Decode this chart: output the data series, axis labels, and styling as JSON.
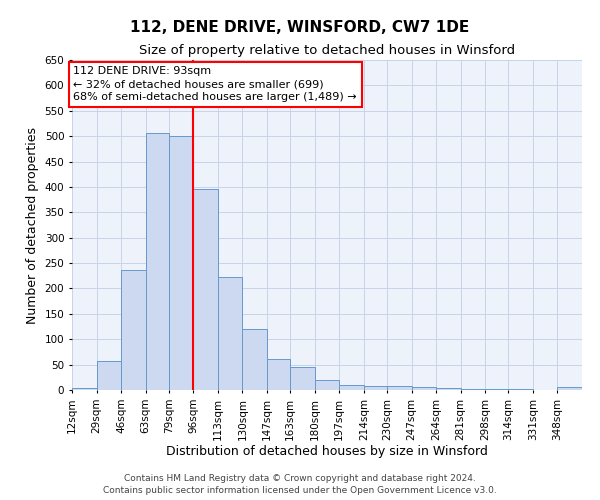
{
  "title": "112, DENE DRIVE, WINSFORD, CW7 1DE",
  "subtitle": "Size of property relative to detached houses in Winsford",
  "xlabel": "Distribution of detached houses by size in Winsford",
  "ylabel": "Number of detached properties",
  "bar_color": "#ccd9f0",
  "bar_edge_color": "#6699cc",
  "grid_color": "#c8d4e8",
  "background_color": "#eef2fb",
  "property_line_color": "red",
  "annotation_text": "112 DENE DRIVE: 93sqm\n← 32% of detached houses are smaller (699)\n68% of semi-detached houses are larger (1,489) →",
  "categories": [
    "12sqm",
    "29sqm",
    "46sqm",
    "63sqm",
    "79sqm",
    "96sqm",
    "113sqm",
    "130sqm",
    "147sqm",
    "163sqm",
    "180sqm",
    "197sqm",
    "214sqm",
    "230sqm",
    "247sqm",
    "264sqm",
    "281sqm",
    "298sqm",
    "314sqm",
    "331sqm",
    "348sqm"
  ],
  "bin_edges": [
    12,
    29,
    46,
    63,
    79,
    96,
    113,
    130,
    147,
    163,
    180,
    197,
    214,
    230,
    247,
    264,
    281,
    298,
    314,
    331,
    348,
    365
  ],
  "values": [
    3,
    57,
    237,
    507,
    500,
    395,
    222,
    120,
    61,
    46,
    20,
    10,
    7,
    7,
    5,
    3,
    1,
    1,
    1,
    0,
    5
  ],
  "ylim": [
    0,
    650
  ],
  "yticks": [
    0,
    50,
    100,
    150,
    200,
    250,
    300,
    350,
    400,
    450,
    500,
    550,
    600,
    650
  ],
  "footer_text": "Contains HM Land Registry data © Crown copyright and database right 2024.\nContains public sector information licensed under the Open Government Licence v3.0.",
  "title_fontsize": 11,
  "subtitle_fontsize": 9.5,
  "label_fontsize": 9,
  "tick_fontsize": 7.5,
  "footer_fontsize": 6.5,
  "annotation_fontsize": 8
}
